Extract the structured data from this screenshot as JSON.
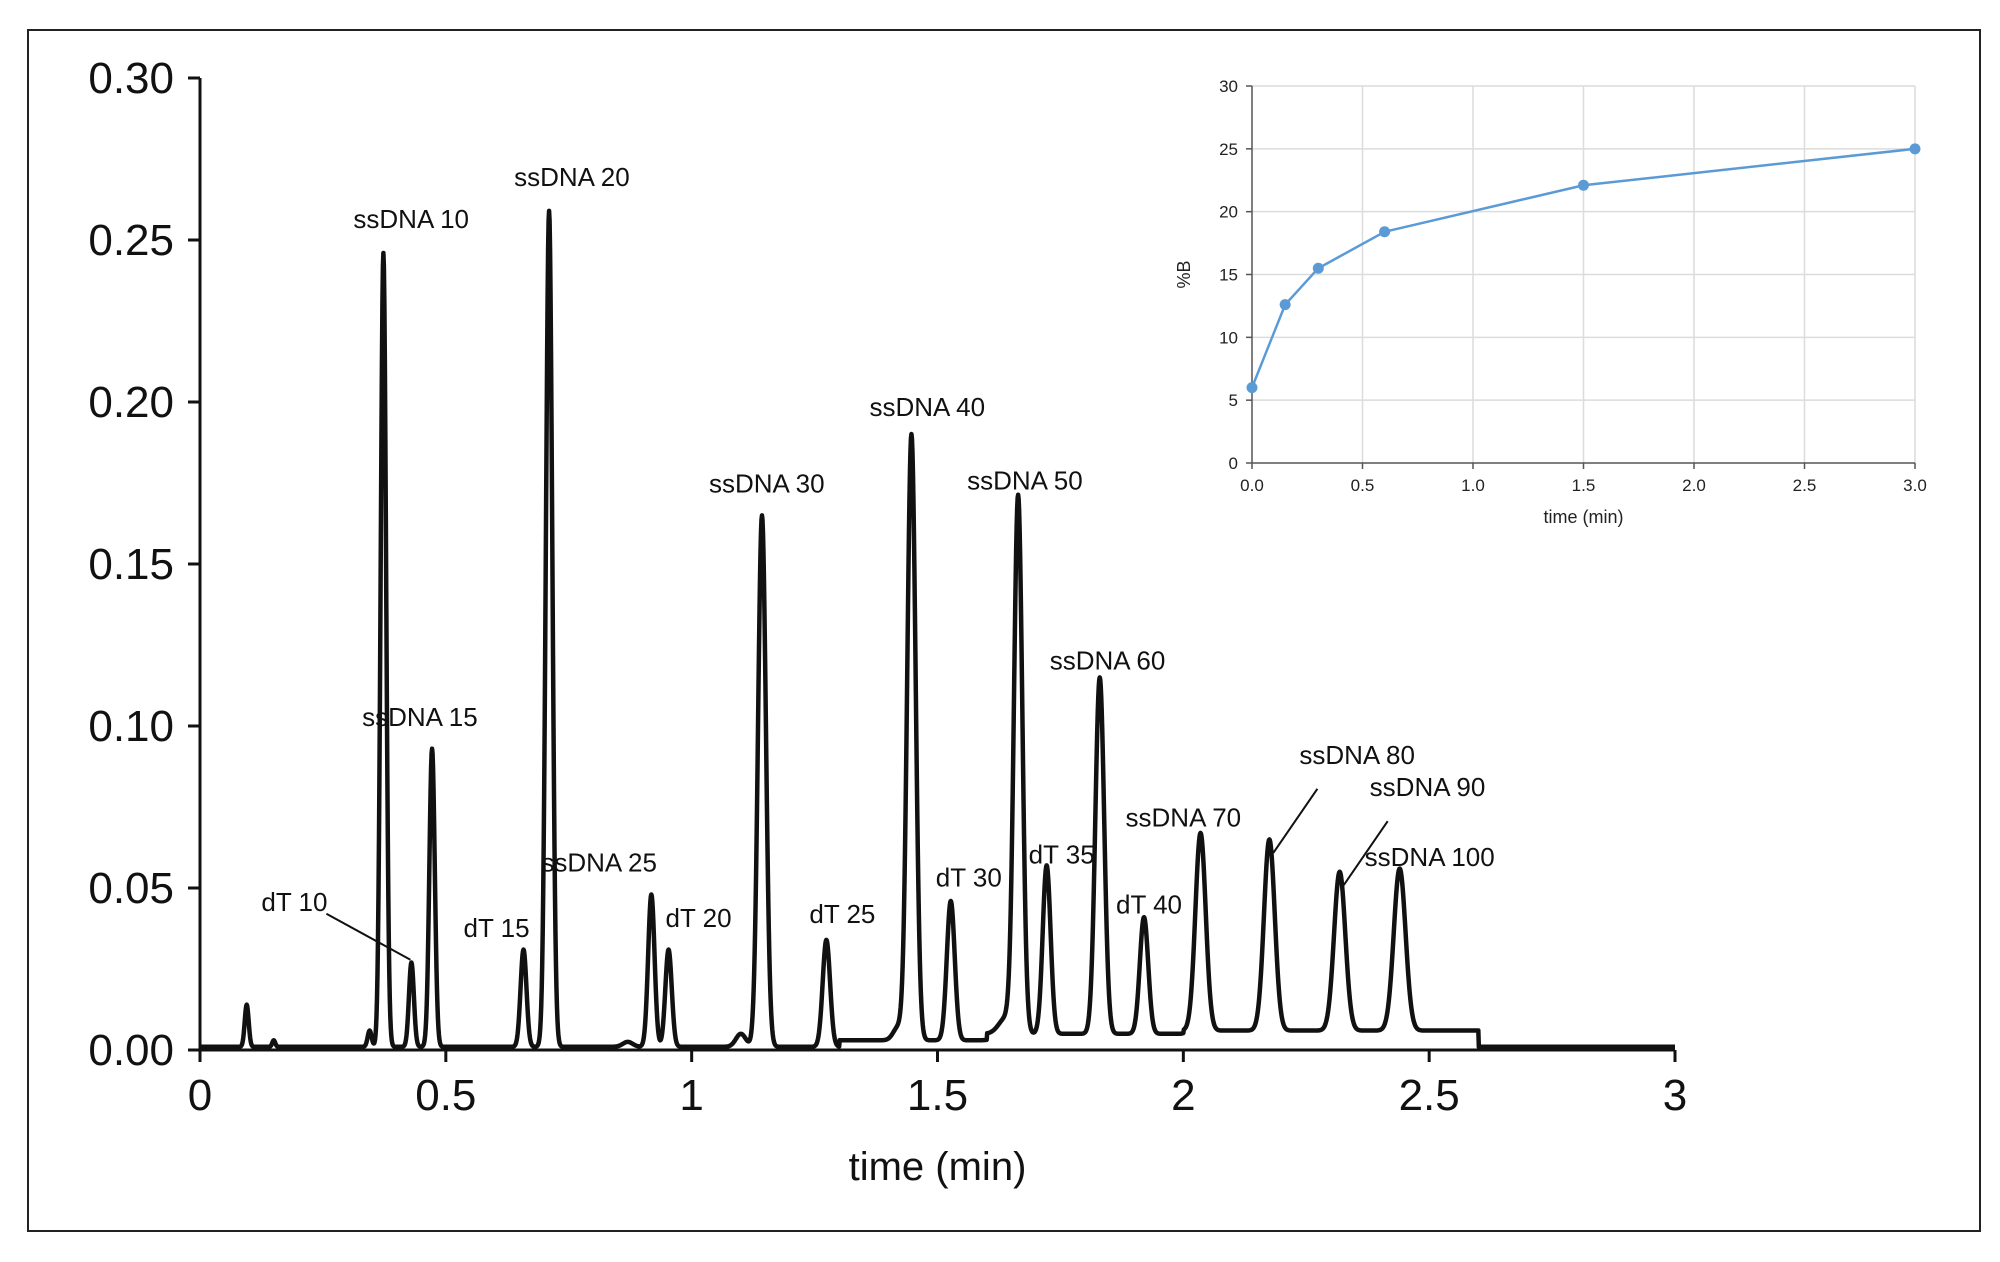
{
  "chart_data": [
    {
      "type": "line",
      "title": "",
      "xlabel": "time (min)",
      "ylabel": "",
      "xlim": [
        0,
        3
      ],
      "ylim": [
        0,
        0.3
      ],
      "x_ticks": [
        "0",
        "0.5",
        "1",
        "1.5",
        "2",
        "2.5",
        "3"
      ],
      "y_ticks": [
        "0.00",
        "0.05",
        "0.10",
        "0.15",
        "0.20",
        "0.25",
        "0.30"
      ],
      "grid": false,
      "series_color": "#111111",
      "peaks": [
        {
          "label": "",
          "t": 0.095,
          "h": 0.013,
          "w": 0.004
        },
        {
          "label": "",
          "t": 0.15,
          "h": 0.002,
          "w": 0.003
        },
        {
          "label": "",
          "t": 0.345,
          "h": 0.005,
          "w": 0.004
        },
        {
          "label": "ssDNA 10",
          "t": 0.373,
          "h": 0.245,
          "w": 0.0055
        },
        {
          "label": "dT 10",
          "t": 0.43,
          "h": 0.026,
          "w": 0.005
        },
        {
          "label": "ssDNA 15",
          "t": 0.472,
          "h": 0.092,
          "w": 0.0055
        },
        {
          "label": "dT 15",
          "t": 0.658,
          "h": 0.03,
          "w": 0.006
        },
        {
          "label": "ssDNA 20",
          "t": 0.71,
          "h": 0.258,
          "w": 0.0065
        },
        {
          "label": "",
          "t": 0.87,
          "h": 0.0015,
          "w": 0.01
        },
        {
          "label": "ssDNA 25",
          "t": 0.918,
          "h": 0.047,
          "w": 0.0065
        },
        {
          "label": "dT 20",
          "t": 0.953,
          "h": 0.03,
          "w": 0.0065
        },
        {
          "label": "",
          "t": 1.1,
          "h": 0.004,
          "w": 0.01
        },
        {
          "label": "ssDNA 30",
          "t": 1.143,
          "h": 0.164,
          "w": 0.008
        },
        {
          "label": "dT 25",
          "t": 1.274,
          "h": 0.033,
          "w": 0.0075
        },
        {
          "label": "",
          "t": 1.42,
          "h": 0.004,
          "w": 0.01
        },
        {
          "label": "ssDNA 40",
          "t": 1.447,
          "h": 0.187,
          "w": 0.0085
        },
        {
          "label": "dT 30",
          "t": 1.527,
          "h": 0.043,
          "w": 0.008
        },
        {
          "label": "",
          "t": 1.64,
          "h": 0.005,
          "w": 0.015
        },
        {
          "label": "ssDNA 50",
          "t": 1.664,
          "h": 0.165,
          "w": 0.0085
        },
        {
          "label": "dT 35",
          "t": 1.722,
          "h": 0.052,
          "w": 0.008
        },
        {
          "label": "ssDNA 60",
          "t": 1.83,
          "h": 0.11,
          "w": 0.009
        },
        {
          "label": "dT 40",
          "t": 1.92,
          "h": 0.036,
          "w": 0.0085
        },
        {
          "label": "ssDNA 70",
          "t": 2.035,
          "h": 0.061,
          "w": 0.0105
        },
        {
          "label": "ssDNA 80",
          "t": 2.175,
          "h": 0.059,
          "w": 0.011
        },
        {
          "label": "ssDNA 90",
          "t": 2.318,
          "h": 0.049,
          "w": 0.0115
        },
        {
          "label": "ssDNA 100",
          "t": 2.44,
          "h": 0.05,
          "w": 0.012
        }
      ],
      "baseline": [
        {
          "from": 0.0,
          "to": 0.32,
          "y": 0.001
        },
        {
          "from": 0.32,
          "to": 1.3,
          "y": 0.001
        },
        {
          "from": 1.3,
          "to": 1.6,
          "y": 0.003
        },
        {
          "from": 1.6,
          "to": 2.0,
          "y": 0.005
        },
        {
          "from": 2.0,
          "to": 2.6,
          "y": 0.006
        },
        {
          "from": 2.6,
          "to": 3.0,
          "y": 0.001
        }
      ]
    },
    {
      "type": "line",
      "title": "",
      "xlabel": "time (min)",
      "ylabel": "%B",
      "xlim": [
        0,
        3
      ],
      "ylim": [
        0,
        30
      ],
      "x_ticks": [
        "0.0",
        "0.5",
        "1.0",
        "1.5",
        "2.0",
        "2.5",
        "3.0"
      ],
      "y_ticks": [
        "0",
        "5",
        "10",
        "15",
        "20",
        "25",
        "30"
      ],
      "grid": true,
      "series_color": "#5b9bd5",
      "x": [
        0,
        0.15,
        0.3,
        0.6,
        1.5,
        3.0
      ],
      "y": [
        6,
        12.6,
        15.5,
        18.4,
        22.1,
        25
      ]
    }
  ]
}
